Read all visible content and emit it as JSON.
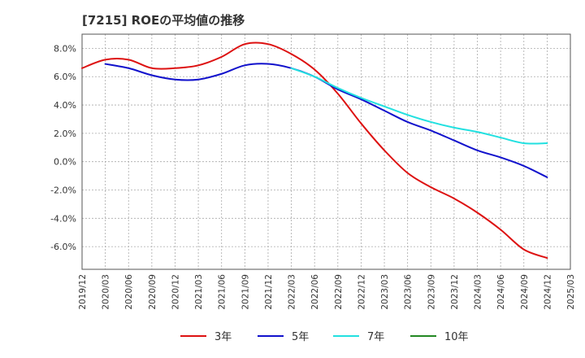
{
  "chart_data": {
    "type": "line",
    "title": "[7215]  ROEの平均値の推移",
    "xlabel": "",
    "ylabel": "",
    "x_ticks": [
      "2019/12",
      "2020/03",
      "2020/06",
      "2020/09",
      "2020/12",
      "2021/03",
      "2021/06",
      "2021/09",
      "2021/12",
      "2022/03",
      "2022/06",
      "2022/09",
      "2022/12",
      "2023/03",
      "2023/06",
      "2023/09",
      "2023/12",
      "2024/03",
      "2024/06",
      "2024/09",
      "2024/12",
      "2025/03"
    ],
    "y_ticks": [
      "8.0%",
      "6.0%",
      "4.0%",
      "2.0%",
      "0.0%",
      "-2.0%",
      "-4.0%",
      "-6.0%"
    ],
    "y_tick_values": [
      8,
      6,
      4,
      2,
      0,
      -2,
      -4,
      -6
    ],
    "ylim": [
      -7.6,
      9.0
    ],
    "grid": true,
    "legend_position": "bottom",
    "series": [
      {
        "name": "3年",
        "color": "#dd1111",
        "x": [
          "2019/12",
          "2020/03",
          "2020/06",
          "2020/09",
          "2020/12",
          "2021/03",
          "2021/06",
          "2021/09",
          "2021/12",
          "2022/03",
          "2022/06",
          "2022/09",
          "2022/12",
          "2023/03",
          "2023/06",
          "2023/09",
          "2023/12",
          "2024/03",
          "2024/06",
          "2024/09",
          "2024/12"
        ],
        "values": [
          6.6,
          7.2,
          7.2,
          6.6,
          6.6,
          6.8,
          7.4,
          8.3,
          8.3,
          7.6,
          6.5,
          4.8,
          2.7,
          0.8,
          -0.8,
          -1.8,
          -2.6,
          -3.6,
          -4.8,
          -6.2,
          -6.8
        ]
      },
      {
        "name": "5年",
        "color": "#1111cc",
        "x": [
          "2020/03",
          "2020/06",
          "2020/09",
          "2020/12",
          "2021/03",
          "2021/06",
          "2021/09",
          "2021/12",
          "2022/03",
          "2022/06",
          "2022/09",
          "2022/12",
          "2023/03",
          "2023/06",
          "2023/09",
          "2023/12",
          "2024/03",
          "2024/06",
          "2024/09",
          "2024/12"
        ],
        "values": [
          6.9,
          6.6,
          6.1,
          5.8,
          5.8,
          6.2,
          6.8,
          6.9,
          6.6,
          6.0,
          5.1,
          4.4,
          3.6,
          2.8,
          2.2,
          1.5,
          0.8,
          0.3,
          -0.3,
          -1.1
        ]
      },
      {
        "name": "7年",
        "color": "#22e0e0",
        "x": [
          "2022/03",
          "2022/06",
          "2022/09",
          "2022/12",
          "2023/03",
          "2023/06",
          "2023/09",
          "2023/12",
          "2024/03",
          "2024/06",
          "2024/09",
          "2024/12"
        ],
        "values": [
          6.6,
          6.0,
          5.2,
          4.5,
          3.9,
          3.3,
          2.8,
          2.4,
          2.1,
          1.7,
          1.3,
          1.3
        ]
      },
      {
        "name": "10年",
        "color": "#228822",
        "x": [],
        "values": []
      }
    ]
  }
}
